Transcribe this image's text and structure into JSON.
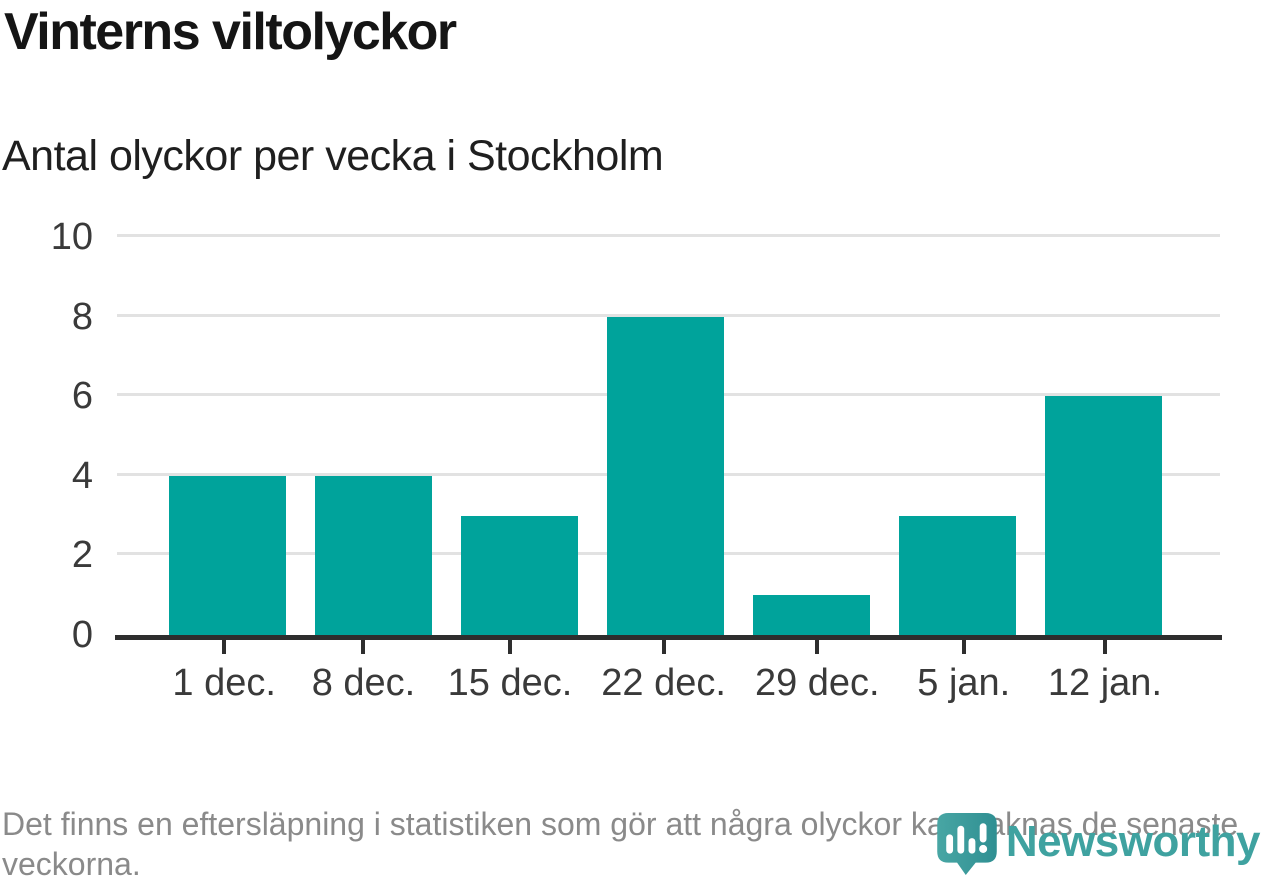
{
  "footnote": "Det finns en eftersläpning i statistiken som gör att några olyckor kan saknas de senaste veckorna.",
  "branding": {
    "name": "Newsworthy",
    "icon": "newsworthy-pin-bar-chart-icon",
    "wordmark_color": "#3fa2a0",
    "icon_color_light": "#48a6a4",
    "icon_color_dark": "#2f8f92"
  },
  "colors": {
    "bar": "#00a39b",
    "gridline": "#e2e2e2",
    "axis": "#2e2e2e",
    "axis_label": "#3a3a3a",
    "title": "#151515",
    "subtitle": "#1f1f1f",
    "footnote": "#8a8a8a",
    "background": "#ffffff"
  },
  "chart_data": {
    "type": "bar",
    "title": "Vinterns viltolyckor",
    "subtitle": "Antal olyckor per vecka i Stockholm",
    "categories": [
      "1 dec.",
      "8 dec.",
      "15 dec.",
      "22 dec.",
      "29 dec.",
      "5 jan.",
      "12 jan."
    ],
    "values": [
      4,
      4,
      3,
      8,
      1,
      3,
      6
    ],
    "xlabel": "",
    "ylabel": "",
    "ylim": [
      0,
      10
    ],
    "yticks": [
      0,
      2,
      4,
      6,
      8,
      10
    ],
    "grid": "horizontal",
    "legend": "none"
  }
}
